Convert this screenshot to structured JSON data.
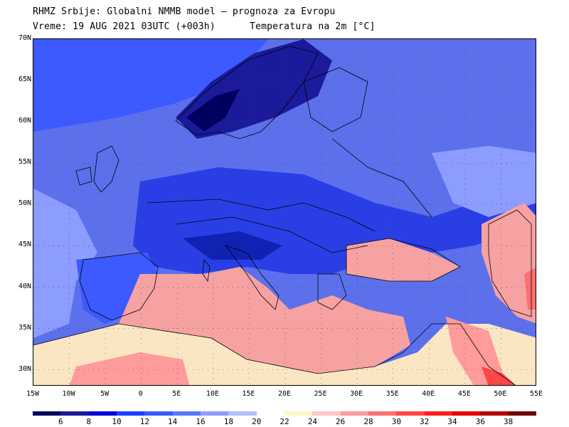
{
  "header": {
    "line1": "RHMZ Srbije: Globalni NMMB model — prognoza za Evropu",
    "line2": "Vreme: 19 AUG 2021 03UTC (+003h)      Temperatura na 2m [°C]"
  },
  "axes": {
    "lat_labels": [
      "70N",
      "65N",
      "60N",
      "55N",
      "50N",
      "45N",
      "40N",
      "35N",
      "30N"
    ],
    "lat_values": [
      70,
      65,
      60,
      55,
      50,
      45,
      40,
      35,
      30
    ],
    "lon_labels": [
      "15W",
      "10W",
      "5W",
      "0",
      "5E",
      "10E",
      "15E",
      "20E",
      "25E",
      "30E",
      "35E",
      "40E",
      "45E",
      "50E",
      "55E"
    ],
    "lon_values": [
      -15,
      -10,
      -5,
      0,
      5,
      10,
      15,
      20,
      25,
      30,
      35,
      40,
      45,
      50,
      55
    ],
    "lat_range": [
      28,
      70
    ],
    "lon_range": [
      -15,
      55
    ]
  },
  "legend": {
    "ticks": [
      "6",
      "8",
      "10",
      "12",
      "14",
      "16",
      "18",
      "20",
      "22",
      "24",
      "26",
      "28",
      "30",
      "32",
      "34",
      "36",
      "38"
    ],
    "colors": [
      "#000060",
      "#1a1a9a",
      "#0000dc",
      "#1e3cff",
      "#3c5aff",
      "#5a78ff",
      "#8c9cff",
      "#b4beff",
      "#ffffff",
      "#fff6c8",
      "#ffc8c8",
      "#ff9b9b",
      "#ff7070",
      "#ff4646",
      "#ff1e1e",
      "#e60000",
      "#b40000",
      "#6e0000"
    ]
  },
  "colors": {
    "sea_cold": "#5c70ec",
    "land_cold": "#2a3ee6",
    "mountain_cold": "#0f22b4",
    "mediterranean_warm": "#f6a2a2",
    "africa_warm": "#fbe6c4",
    "hot_spots": "#ff5050"
  }
}
